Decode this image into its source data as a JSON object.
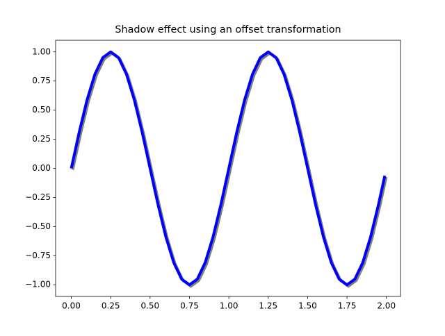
{
  "chart_data": {
    "type": "line",
    "title": "Shadow effect using an offset transformation",
    "x": [
      0,
      0.05,
      0.1,
      0.15,
      0.2,
      0.25,
      0.3,
      0.35,
      0.4,
      0.45,
      0.5,
      0.55,
      0.6,
      0.65,
      0.7,
      0.75,
      0.8,
      0.85,
      0.9,
      0.95,
      1.0,
      1.05,
      1.1,
      1.15,
      1.2,
      1.25,
      1.3,
      1.35,
      1.4,
      1.45,
      1.5,
      1.55,
      1.6,
      1.65,
      1.7,
      1.75,
      1.8,
      1.85,
      1.9,
      1.95,
      1.99
    ],
    "series": [
      {
        "color": "#0000ff",
        "shadow_color": "#808080",
        "values": [
          0,
          0.309,
          0.5878,
          0.809,
          0.9511,
          1,
          0.9511,
          0.809,
          0.5878,
          0.309,
          0,
          -0.309,
          -0.5878,
          -0.809,
          -0.9511,
          -1,
          -0.9511,
          -0.809,
          -0.5878,
          -0.309,
          0,
          0.309,
          0.5878,
          0.809,
          0.9511,
          1,
          0.9511,
          0.809,
          0.5878,
          0.309,
          0,
          -0.309,
          -0.5878,
          -0.809,
          -0.9511,
          -1,
          -0.9511,
          -0.809,
          -0.5878,
          -0.309,
          -0.0628
        ]
      }
    ],
    "xlim": [
      -0.0995,
      2.0895
    ],
    "ylim": [
      -1.1,
      1.1
    ],
    "xticks": [
      {
        "value": 0,
        "label": "0.00"
      },
      {
        "value": 0.25,
        "label": "0.25"
      },
      {
        "value": 0.5,
        "label": "0.50"
      },
      {
        "value": 0.75,
        "label": "0.75"
      },
      {
        "value": 1.0,
        "label": "1.00"
      },
      {
        "value": 1.25,
        "label": "1.25"
      },
      {
        "value": 1.5,
        "label": "1.50"
      },
      {
        "value": 1.75,
        "label": "1.75"
      },
      {
        "value": 2.0,
        "label": "2.00"
      }
    ],
    "yticks": [
      {
        "value": -1,
        "label": "−1.00"
      },
      {
        "value": -0.75,
        "label": "−0.75"
      },
      {
        "value": -0.5,
        "label": "−0.50"
      },
      {
        "value": -0.25,
        "label": "−0.25"
      },
      {
        "value": 0,
        "label": "0.00"
      },
      {
        "value": 0.25,
        "label": "0.25"
      },
      {
        "value": 0.5,
        "label": "0.50"
      },
      {
        "value": 0.75,
        "label": "0.75"
      },
      {
        "value": 1.0,
        "label": "1.00"
      }
    ],
    "grid": false
  }
}
